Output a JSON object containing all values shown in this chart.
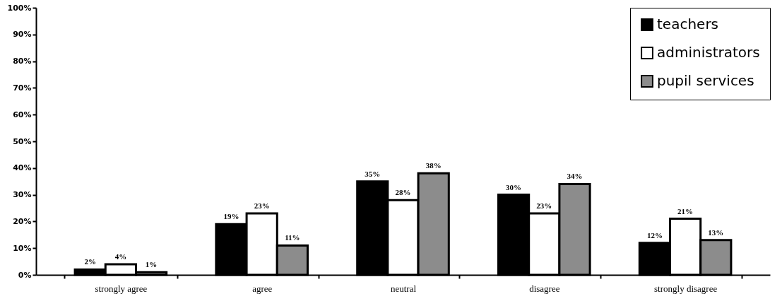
{
  "chart_data": {
    "type": "bar",
    "categories": [
      "strongly agree",
      "agree",
      "neutral",
      "disagree",
      "strongly disagree"
    ],
    "series": [
      {
        "name": "teachers",
        "color": "#000000",
        "values": [
          2,
          19,
          35,
          30,
          12
        ],
        "value_labels": [
          "2%",
          "19%",
          "35%",
          "30%",
          "12%"
        ]
      },
      {
        "name": "administrators",
        "color": "#ffffff",
        "values": [
          4,
          23,
          28,
          23,
          21
        ],
        "value_labels": [
          "4%",
          "23%",
          "28%",
          "23%",
          "21%"
        ]
      },
      {
        "name": "pupil services",
        "color": "#8c8c8c",
        "values": [
          1,
          11,
          38,
          34,
          13
        ],
        "value_labels": [
          "1%",
          "11%",
          "38%",
          "34%",
          "13%"
        ]
      }
    ],
    "ylim": [
      0,
      100
    ],
    "yticks": [
      {
        "value": 0,
        "label": "0%"
      },
      {
        "value": 10,
        "label": "10%"
      },
      {
        "value": 20,
        "label": "20%"
      },
      {
        "value": 30,
        "label": "30%"
      },
      {
        "value": 40,
        "label": "40%"
      },
      {
        "value": 50,
        "label": "50%"
      },
      {
        "value": 60,
        "label": "60%"
      },
      {
        "value": 70,
        "label": "70%"
      },
      {
        "value": 80,
        "label": "80%"
      },
      {
        "value": 90,
        "label": "90%"
      },
      {
        "value": 100,
        "label": "100%"
      }
    ],
    "grid": false,
    "legend": "top right"
  }
}
